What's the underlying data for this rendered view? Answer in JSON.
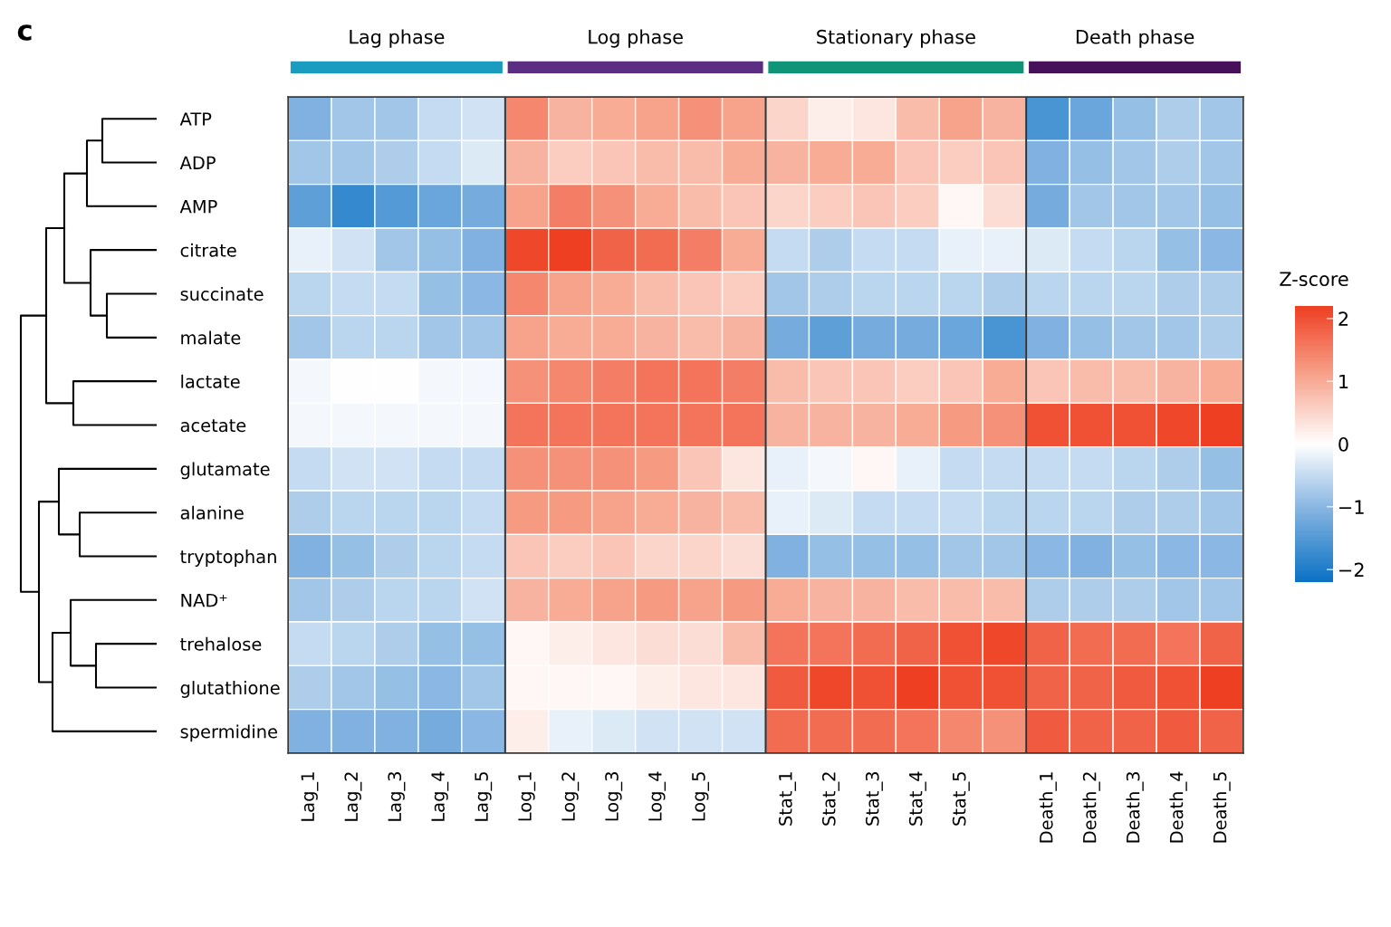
{
  "chart_data": {
    "type": "heatmap",
    "annotations": [
      "c",
      "Lag phase",
      "Log phase",
      "Stationary phase",
      "Death phase"
    ],
    "categories": [
      "Lag_1",
      "Lag_2",
      "Lag_3",
      "Lag_4",
      "Lag_5",
      "Log_1",
      "Log_2",
      "Log_3",
      "Log_4",
      "Log_5",
      null,
      "Stat_1",
      "Stat_2",
      "Stat_3",
      "Stat_4",
      "Stat_5",
      null,
      "Death_1",
      "Death_2",
      "Death_3",
      "Death_4",
      "Death_5"
    ],
    "y_categories": [
      "ATP",
      "ADP",
      "AMP",
      "citrate",
      "succinate",
      "malate",
      "lactate",
      "acetate",
      "glutamate",
      "alanine",
      "tryptophan",
      "NAD⁺",
      "trehalose",
      "glutathione",
      "spermidine"
    ],
    "clim": [
      -2.2,
      2.2
    ],
    "clabel": "Z-score",
    "cticks": [
      {
        "value": -2,
        "label": "−2"
      },
      {
        "value": -1,
        "label": "−1"
      },
      0,
      1,
      2
    ],
    "cells": [
      [
        -1.1,
        -0.8,
        -0.8,
        -0.5,
        -0.4,
        1.4,
        0.9,
        1.0,
        1.1,
        1.3,
        1.1,
        0.5,
        0.2,
        0.3,
        0.8,
        1.1,
        0.9,
        -1.6,
        -1.3,
        -0.9,
        -0.7,
        -0.8
      ],
      [
        -0.8,
        -0.8,
        -0.7,
        -0.5,
        -0.3,
        0.9,
        0.6,
        0.7,
        0.8,
        0.8,
        1.0,
        0.9,
        1.0,
        1.0,
        0.7,
        0.6,
        0.7,
        -1.1,
        -0.9,
        -0.8,
        -0.7,
        -0.8
      ],
      [
        -1.4,
        -1.8,
        -1.5,
        -1.3,
        -1.2,
        1.1,
        1.5,
        1.3,
        1.0,
        0.8,
        0.7,
        0.5,
        0.6,
        0.7,
        0.6,
        0.1,
        0.4,
        -1.2,
        -0.8,
        -0.8,
        -0.8,
        -0.9
      ],
      [
        -0.2,
        -0.4,
        -0.8,
        -0.9,
        -1.1,
        2.1,
        2.2,
        1.8,
        1.7,
        1.5,
        1.0,
        -0.5,
        -0.7,
        -0.5,
        -0.5,
        -0.2,
        -0.2,
        -0.3,
        -0.5,
        -0.6,
        -0.9,
        -1.0
      ],
      [
        -0.6,
        -0.5,
        -0.5,
        -0.9,
        -1.0,
        1.4,
        1.1,
        1.0,
        0.8,
        0.7,
        0.6,
        -0.8,
        -0.7,
        -0.6,
        -0.6,
        -0.6,
        -0.7,
        -0.6,
        -0.6,
        -0.6,
        -0.7,
        -0.7
      ],
      [
        -0.8,
        -0.6,
        -0.6,
        -0.8,
        -0.8,
        1.1,
        1.0,
        1.0,
        0.9,
        0.8,
        0.9,
        -1.2,
        -1.4,
        -1.2,
        -1.2,
        -1.3,
        -1.6,
        -1.1,
        -0.9,
        -0.8,
        -0.8,
        -0.7
      ],
      [
        -0.1,
        0.0,
        0.0,
        -0.1,
        -0.1,
        1.3,
        1.4,
        1.5,
        1.6,
        1.6,
        1.5,
        0.8,
        0.7,
        0.7,
        0.6,
        0.7,
        1.0,
        0.7,
        0.8,
        0.8,
        0.9,
        1.0
      ],
      [
        -0.1,
        -0.1,
        -0.1,
        -0.1,
        -0.1,
        1.6,
        1.6,
        1.6,
        1.6,
        1.6,
        1.6,
        0.9,
        0.9,
        0.9,
        1.0,
        1.2,
        1.3,
        2.0,
        2.0,
        2.0,
        2.1,
        2.2
      ],
      [
        -0.5,
        -0.4,
        -0.4,
        -0.5,
        -0.5,
        1.3,
        1.3,
        1.3,
        1.2,
        0.7,
        0.3,
        -0.2,
        -0.1,
        0.1,
        -0.2,
        -0.5,
        -0.5,
        -0.5,
        -0.5,
        -0.6,
        -0.7,
        -0.9
      ],
      [
        -0.7,
        -0.6,
        -0.6,
        -0.6,
        -0.5,
        1.2,
        1.2,
        1.1,
        1.0,
        0.9,
        0.8,
        -0.2,
        -0.3,
        -0.5,
        -0.5,
        -0.5,
        -0.6,
        -0.6,
        -0.6,
        -0.7,
        -0.7,
        -0.8
      ],
      [
        -1.1,
        -0.9,
        -0.7,
        -0.6,
        -0.5,
        0.7,
        0.6,
        0.7,
        0.5,
        0.5,
        0.4,
        -1.1,
        -0.9,
        -0.9,
        -0.9,
        -0.8,
        -0.8,
        -1.0,
        -1.1,
        -0.9,
        -1.0,
        -1.0
      ],
      [
        -0.8,
        -0.7,
        -0.6,
        -0.6,
        -0.4,
        0.9,
        1.0,
        1.1,
        1.2,
        1.1,
        1.2,
        1.0,
        0.9,
        0.9,
        0.8,
        0.8,
        0.8,
        -0.7,
        -0.7,
        -0.7,
        -0.8,
        -0.8
      ],
      [
        -0.5,
        -0.6,
        -0.7,
        -0.9,
        -0.9,
        0.1,
        0.2,
        0.3,
        0.4,
        0.4,
        0.8,
        1.6,
        1.6,
        1.7,
        1.8,
        2.0,
        2.1,
        1.8,
        1.7,
        1.7,
        1.6,
        1.8
      ],
      [
        -0.7,
        -0.8,
        -0.9,
        -1.0,
        -0.8,
        0.1,
        0.1,
        0.1,
        0.2,
        0.3,
        0.3,
        1.9,
        2.1,
        2.0,
        2.2,
        2.0,
        2.0,
        1.8,
        1.8,
        1.9,
        2.0,
        2.2
      ],
      [
        -1.1,
        -1.1,
        -1.1,
        -1.2,
        -1.0,
        0.2,
        -0.2,
        -0.3,
        -0.4,
        -0.4,
        -0.4,
        1.7,
        1.7,
        1.7,
        1.6,
        1.4,
        1.3,
        1.9,
        1.8,
        1.8,
        1.9,
        1.8
      ]
    ]
  }
}
